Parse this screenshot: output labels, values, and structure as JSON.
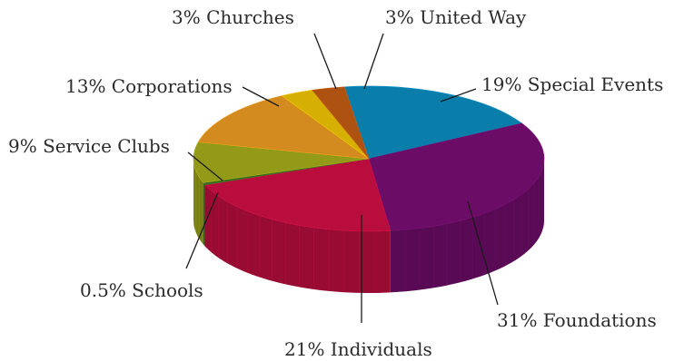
{
  "chart_data": {
    "type": "pie",
    "title": "",
    "style": "3d",
    "slices": [
      {
        "label": "19% Special Events",
        "name": "Special Events",
        "value": 19,
        "color": "#0a7eab"
      },
      {
        "label": "31% Foundations",
        "name": "Foundations",
        "value": 31,
        "color": "#6b0c66"
      },
      {
        "label": "21% Individuals",
        "name": "Individuals",
        "value": 21,
        "color": "#b90d3d"
      },
      {
        "label": "0.5% Schools",
        "name": "Schools",
        "value": 0.5,
        "color": "#3b6a1f"
      },
      {
        "label": "9% Service Clubs",
        "name": "Service Clubs",
        "value": 9,
        "color": "#939a17"
      },
      {
        "label": "13% Corporations",
        "name": "Corporations",
        "value": 13,
        "color": "#d38a1e"
      },
      {
        "label": "3% Churches",
        "name": "Churches",
        "value": 3,
        "color": "#d5b002"
      },
      {
        "label": "3% United Way",
        "name": "United Way",
        "value": 3,
        "color": "#ad5210"
      }
    ]
  }
}
